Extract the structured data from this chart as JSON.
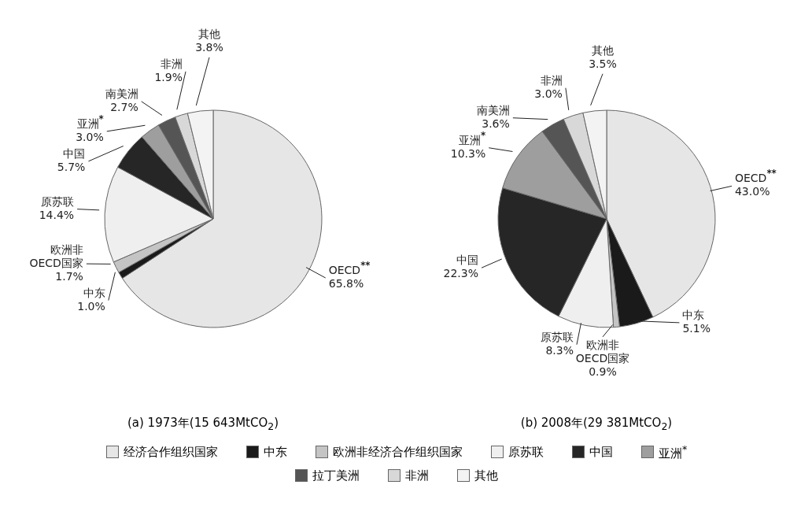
{
  "chart_data": [
    {
      "type": "pie",
      "title": "(a) 1973年(15 643MtCO$_{2}$)",
      "categories": [
        "OECD$^{**}$",
        "中东",
        "欧洲非OECD国家",
        "原苏联",
        "中国",
        "亚洲$^{*}$",
        "南美洲",
        "非洲",
        "其他"
      ],
      "values": [
        65.8,
        1.0,
        1.7,
        14.4,
        5.7,
        3.0,
        2.7,
        1.9,
        3.8
      ],
      "colors": [
        "#e6e6e6",
        "#1a1a1a",
        "#c4c4c4",
        "#efefef",
        "#262626",
        "#9e9e9e",
        "#555555",
        "#d8d8d8",
        "#f3f3f3"
      ],
      "value_labels": [
        "65.8%",
        "1.0%",
        "1.7%",
        "14.4%",
        "5.7%",
        "3.0%",
        "2.7%",
        "1.9%",
        "3.8%"
      ]
    },
    {
      "type": "pie",
      "title": "(b) 2008年(29 381MtCO$_{2}$)",
      "categories": [
        "OECD$^{**}$",
        "中东",
        "欧洲非OECD国家",
        "原苏联",
        "中国",
        "亚洲$^{*}$",
        "南美洲",
        "非洲",
        "其他"
      ],
      "values": [
        43.0,
        5.1,
        0.9,
        8.3,
        22.3,
        10.3,
        3.6,
        3.0,
        3.5
      ],
      "colors": [
        "#e6e6e6",
        "#1a1a1a",
        "#c4c4c4",
        "#efefef",
        "#262626",
        "#9e9e9e",
        "#555555",
        "#d8d8d8",
        "#f3f3f3"
      ],
      "value_labels": [
        "43.0%",
        "5.1%",
        "0.9%",
        "8.3%",
        "22.3%",
        "10.3%",
        "3.6%",
        "3.0%",
        "3.5%"
      ]
    },
    {
      "type": "other",
      "categories": [
        "经济合作组织国家",
        "中东",
        "欧洲非经济合作组织国家",
        "原苏联",
        "中国",
        "亚洲$^{*}$",
        "拉丁美洲",
        "非洲",
        "其他"
      ],
      "colors": [
        "#e6e6e6",
        "#1a1a1a",
        "#c4c4c4",
        "#efefef",
        "#262626",
        "#9e9e9e",
        "#555555",
        "#d8d8d8",
        "#f3f3f3"
      ]
    }
  ]
}
